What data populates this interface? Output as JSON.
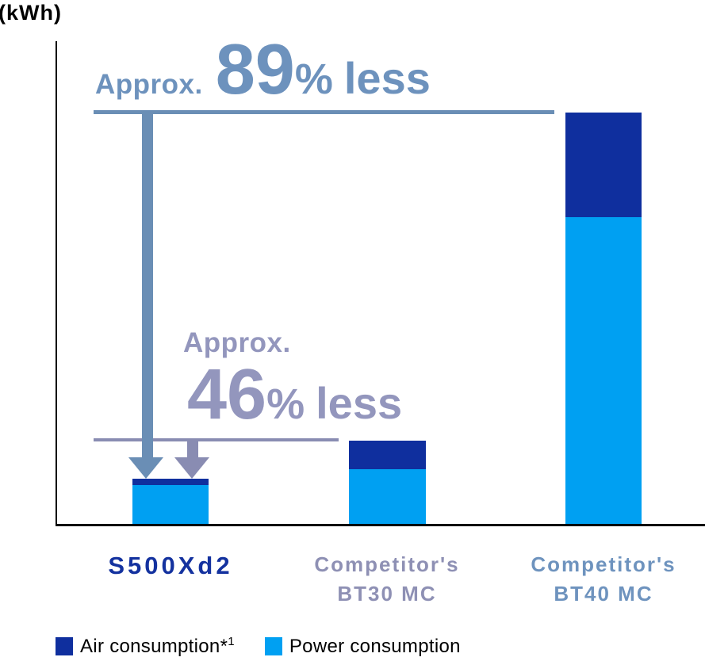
{
  "unit_label": "(kWh)",
  "colors": {
    "air": "#0f2f9e",
    "power": "#00a0f2",
    "accent_89": "#6a8eb5",
    "accent_46": "#898cb2",
    "text_89": "#6d92bd",
    "text_46": "#9396bd",
    "label_s500": "#14329f",
    "label_bt30": "#8e90b4",
    "label_bt40": "#6e93be",
    "axis": "#000000"
  },
  "chart_data": {
    "type": "bar",
    "stacked": true,
    "title": "",
    "ylabel": "(kWh)",
    "grid": false,
    "legend_position": "bottom",
    "categories": [
      "S500Xd2",
      "Competitor's BT30 MC",
      "Competitor's BT40 MC"
    ],
    "series": [
      {
        "name": "Air consumption*1",
        "color": "#0f2f9e",
        "values": [
          8,
          36,
          132
        ]
      },
      {
        "name": "Power consumption",
        "color": "#00a0f2",
        "values": [
          49,
          69,
          387
        ]
      }
    ],
    "totals_relative": [
      57,
      105,
      519
    ],
    "value_units": "relative height units (no numeric axis shown)",
    "annotations": [
      {
        "text": "Approx. 89% less",
        "compares": "S500Xd2 vs Competitor's BT40 MC"
      },
      {
        "text": "Approx. 46% less",
        "compares": "S500Xd2 vs Competitor's BT30 MC"
      }
    ]
  },
  "annotations": {
    "a89": {
      "prefix": "Approx.",
      "value": "89",
      "percent": "%",
      "suffix": "less"
    },
    "a46": {
      "prefix": "Approx.",
      "value": "46",
      "percent": "%",
      "suffix": "less"
    }
  },
  "x_labels": {
    "s500": {
      "line1": "S500Xd2"
    },
    "bt30": {
      "line1": "Competitor's",
      "line2": "BT30 MC"
    },
    "bt40": {
      "line1": "Competitor's",
      "line2": "BT40 MC"
    }
  },
  "legend": {
    "items": [
      {
        "label": "Air consumption",
        "footnote_marker": "*",
        "footnote_number": "1",
        "color": "#0f2f9e"
      },
      {
        "label": "Power consumption",
        "color": "#00a0f2"
      }
    ]
  }
}
